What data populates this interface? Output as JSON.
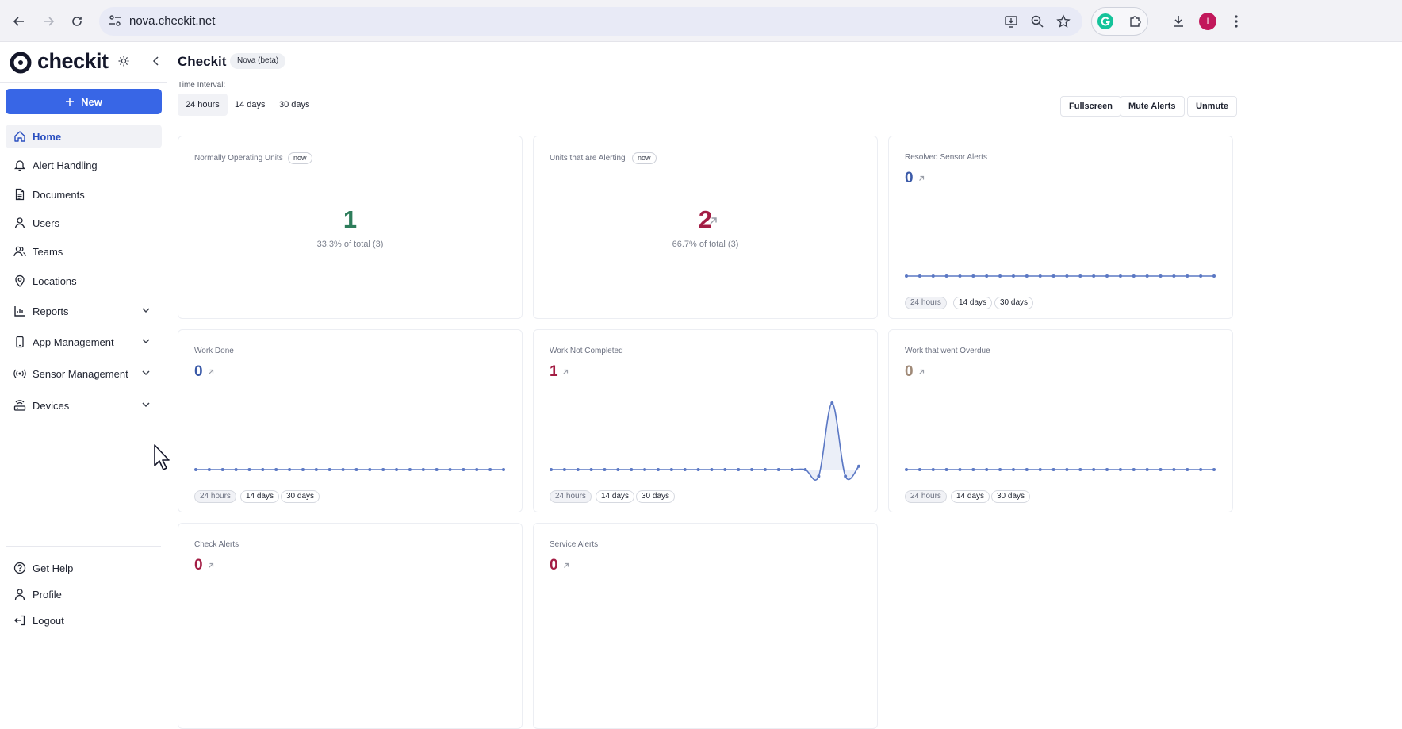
{
  "browser": {
    "url": "nova.checkit.net",
    "avatar_letter": "I",
    "avatar_color": "#c2185b"
  },
  "sidebar": {
    "logo_text": "checkit",
    "new_label": "New",
    "items": [
      {
        "label": "Home",
        "icon": "home-icon",
        "active": true
      },
      {
        "label": "Alert Handling",
        "icon": "bell-icon"
      },
      {
        "label": "Documents",
        "icon": "document-icon"
      },
      {
        "label": "Users",
        "icon": "user-icon"
      },
      {
        "label": "Teams",
        "icon": "users-icon"
      },
      {
        "label": "Locations",
        "icon": "map-pin-icon"
      },
      {
        "label": "Reports",
        "icon": "bar-chart-icon",
        "expandable": true
      },
      {
        "label": "App Management",
        "icon": "phone-icon",
        "expandable": true
      },
      {
        "label": "Sensor Management",
        "icon": "signal-icon",
        "expandable": true
      },
      {
        "label": "Devices",
        "icon": "router-icon",
        "expandable": true
      }
    ],
    "bottom_items": [
      {
        "label": "Get Help",
        "icon": "help-icon"
      },
      {
        "label": "Profile",
        "icon": "user-icon"
      },
      {
        "label": "Logout",
        "icon": "logout-icon"
      }
    ]
  },
  "header": {
    "title": "Checkit",
    "badge": "Nova (beta)",
    "interval_label": "Time Interval:",
    "intervals": [
      "24 hours",
      "14 days",
      "30 days"
    ],
    "selected_interval": "24 hours",
    "actions": [
      "Fullscreen",
      "Mute Alerts",
      "Unmute"
    ]
  },
  "colors": {
    "accent": "#3866e6",
    "green": "#2e7d5b",
    "red": "#a31d44",
    "blue": "#3b5aa8",
    "tan": "#a08a78",
    "line": "#5b78c4"
  },
  "cards": [
    {
      "title": "Normally Operating Units",
      "badge": "now",
      "value": "1",
      "sub": "33.3% of total (3)"
    },
    {
      "title": "Units that are Alerting",
      "badge": "now",
      "value": "2",
      "sub": "66.7% of total (3)"
    },
    {
      "title": "Resolved Sensor Alerts",
      "value": "0"
    },
    {
      "title": "Work Done",
      "value": "0"
    },
    {
      "title": "Work Not Completed",
      "value": "1"
    },
    {
      "title": "Work that went Overdue",
      "value": "0"
    },
    {
      "title": "Check Alerts",
      "value": "0"
    },
    {
      "title": "Service Alerts",
      "value": "0"
    }
  ],
  "chip_labels": [
    "24 hours",
    "14 days",
    "30 days"
  ],
  "chart_data": [
    {
      "type": "line",
      "series": [
        {
          "values": [
            0,
            0,
            0,
            0,
            0,
            0,
            0,
            0,
            0,
            0,
            0,
            0,
            0,
            0,
            0,
            0,
            0,
            0,
            0,
            0,
            0,
            0,
            0,
            0
          ]
        }
      ]
    },
    {
      "type": "line",
      "series": [
        {
          "values": [
            0,
            0,
            0,
            0,
            0,
            0,
            0,
            0,
            0,
            0,
            0,
            0,
            0,
            0,
            0,
            0,
            0,
            0,
            0,
            0,
            0,
            0,
            0,
            0
          ]
        }
      ]
    },
    {
      "type": "line",
      "series": [
        {
          "values": [
            0,
            0,
            0,
            0,
            0,
            0,
            0,
            0,
            0,
            0,
            0,
            0,
            0,
            0,
            0,
            0,
            0,
            0,
            0,
            0,
            -0.1,
            1,
            -0.1,
            0.05
          ]
        }
      ]
    },
    {
      "type": "line",
      "series": [
        {
          "values": [
            0,
            0,
            0,
            0,
            0,
            0,
            0,
            0,
            0,
            0,
            0,
            0,
            0,
            0,
            0,
            0,
            0,
            0,
            0,
            0,
            0,
            0,
            0,
            0
          ]
        }
      ]
    }
  ]
}
